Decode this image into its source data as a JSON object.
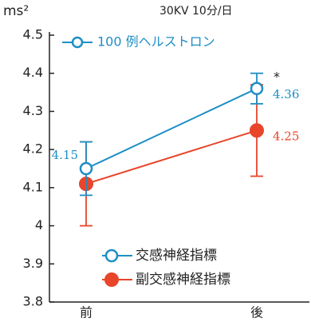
{
  "chart_data": {
    "type": "line",
    "unit_label": "ms²",
    "subtitle": "30KV 10分/日",
    "legend_title": "100 例ヘルストロン",
    "annotation": "*",
    "categories": [
      "前",
      "後"
    ],
    "series": [
      {
        "name": "交感神経指標",
        "color": "#1e8ec6",
        "marker": "open",
        "values": [
          4.15,
          4.36
        ],
        "errors": [
          0.07,
          0.04
        ],
        "value_labels": [
          "4.15",
          "4.36"
        ]
      },
      {
        "name": "副交感神経指標",
        "color": "#e8452a",
        "marker": "filled",
        "values": [
          4.11,
          4.25
        ],
        "errors": [
          0.11,
          0.12
        ],
        "value_labels": [
          null,
          "4.25"
        ]
      }
    ],
    "ylim": [
      3.8,
      4.5
    ],
    "yticks": [
      3.8,
      3.9,
      4,
      4.1,
      4.2,
      4.3,
      4.4,
      4.5
    ]
  }
}
